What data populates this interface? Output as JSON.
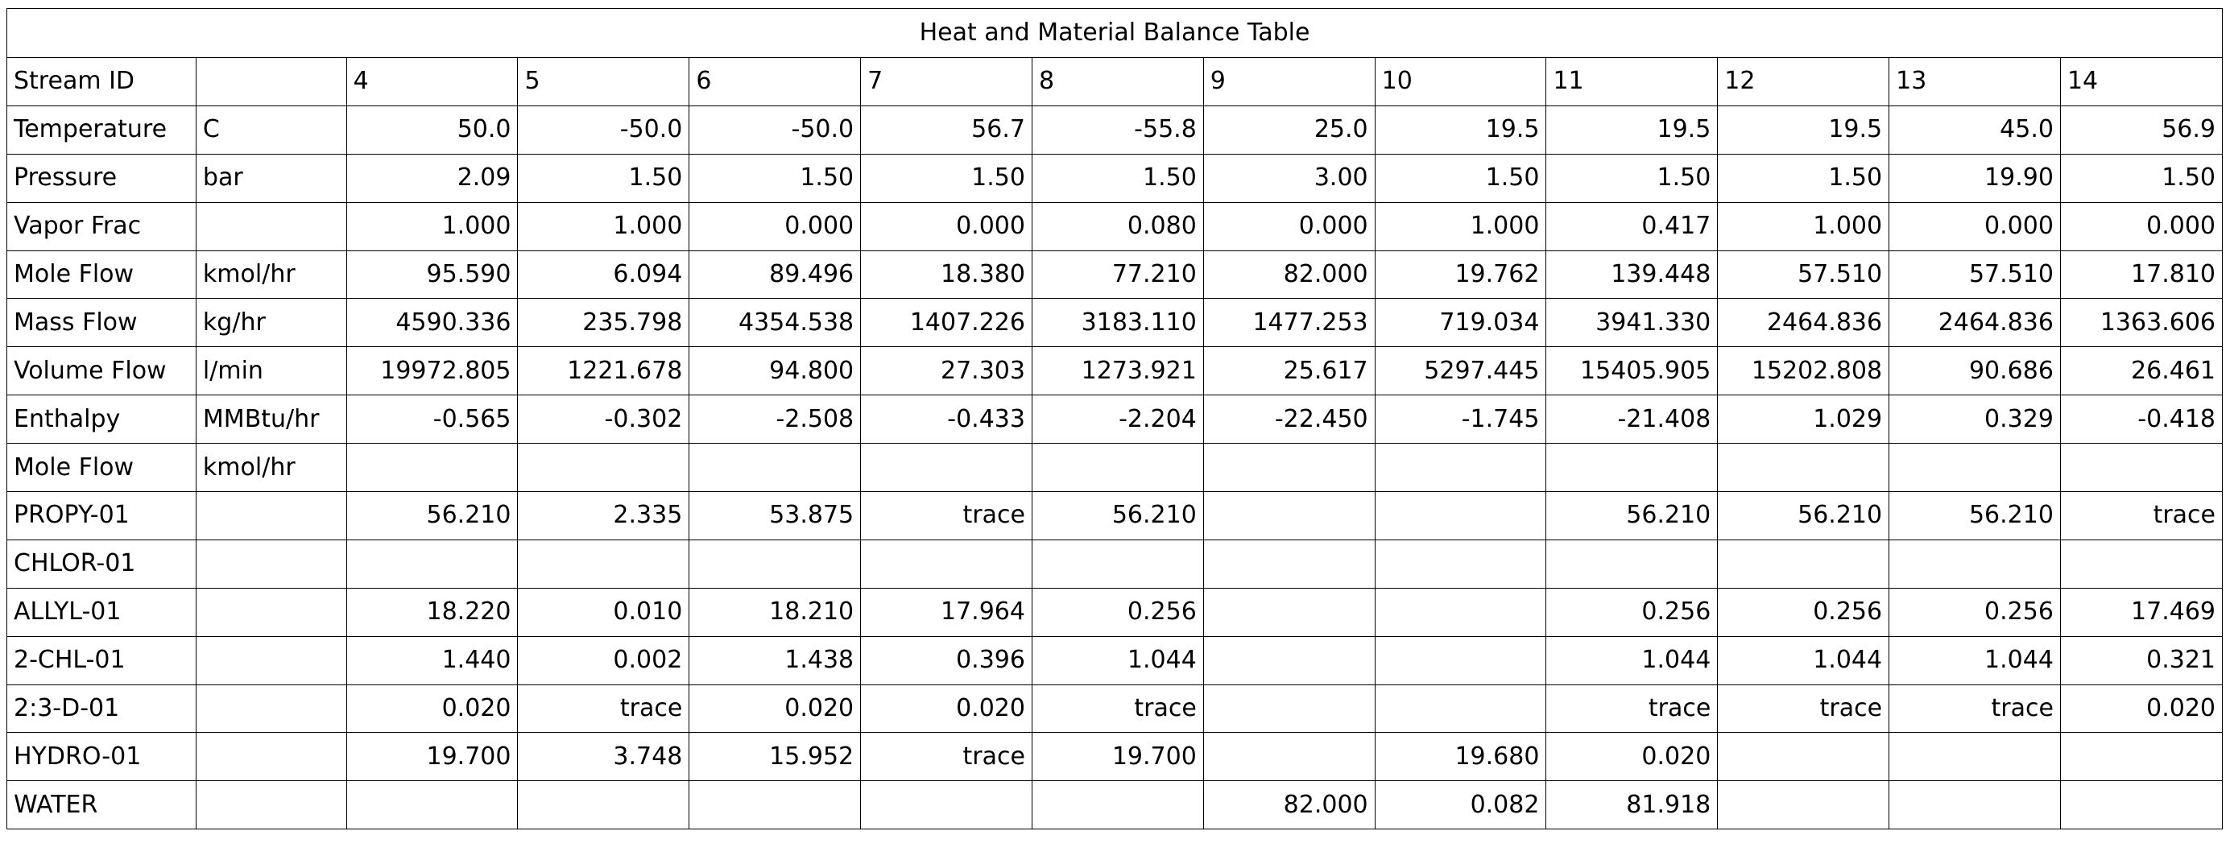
{
  "title": "Heat and Material Balance Table",
  "header": {
    "label": "Stream ID",
    "unit": "",
    "streams": [
      "4",
      "5",
      "6",
      "7",
      "8",
      "9",
      "10",
      "11",
      "12",
      "13",
      "14"
    ]
  },
  "props": [
    {
      "label": "Temperature",
      "unit": "C",
      "values": [
        "50.0",
        "-50.0",
        "-50.0",
        "56.7",
        "-55.8",
        "25.0",
        "19.5",
        "19.5",
        "19.5",
        "45.0",
        "56.9"
      ]
    },
    {
      "label": "Pressure",
      "unit": "bar",
      "values": [
        "2.09",
        "1.50",
        "1.50",
        "1.50",
        "1.50",
        "3.00",
        "1.50",
        "1.50",
        "1.50",
        "19.90",
        "1.50"
      ]
    },
    {
      "label": "Vapor Frac",
      "unit": "",
      "values": [
        "1.000",
        "1.000",
        "0.000",
        "0.000",
        "0.080",
        "0.000",
        "1.000",
        "0.417",
        "1.000",
        "0.000",
        "0.000"
      ]
    },
    {
      "label": "Mole Flow",
      "unit": "kmol/hr",
      "values": [
        "95.590",
        "6.094",
        "89.496",
        "18.380",
        "77.210",
        "82.000",
        "19.762",
        "139.448",
        "57.510",
        "57.510",
        "17.810"
      ]
    },
    {
      "label": "Mass Flow",
      "unit": "kg/hr",
      "values": [
        "4590.336",
        "235.798",
        "4354.538",
        "1407.226",
        "3183.110",
        "1477.253",
        "719.034",
        "3941.330",
        "2464.836",
        "2464.836",
        "1363.606"
      ]
    },
    {
      "label": "Volume Flow",
      "unit": "l/min",
      "values": [
        "19972.805",
        "1221.678",
        "94.800",
        "27.303",
        "1273.921",
        "25.617",
        "5297.445",
        "15405.905",
        "15202.808",
        "90.686",
        "26.461"
      ]
    },
    {
      "label": "Enthalpy",
      "unit": "MMBtu/hr",
      "values": [
        "-0.565",
        "-0.302",
        "-2.508",
        "-0.433",
        "-2.204",
        "-22.450",
        "-1.745",
        "-21.408",
        "1.029",
        "0.329",
        "-0.418"
      ]
    }
  ],
  "component_header": {
    "label": "Mole Flow",
    "unit": "kmol/hr"
  },
  "components": [
    {
      "label": "PROPY-01",
      "values": [
        "56.210",
        "2.335",
        "53.875",
        "trace",
        "56.210",
        "",
        "",
        "56.210",
        "56.210",
        "56.210",
        "trace"
      ]
    },
    {
      "label": "CHLOR-01",
      "values": [
        "",
        "",
        "",
        "",
        "",
        "",
        "",
        "",
        "",
        "",
        ""
      ]
    },
    {
      "label": "ALLYL-01",
      "values": [
        "18.220",
        "0.010",
        "18.210",
        "17.964",
        "0.256",
        "",
        "",
        "0.256",
        "0.256",
        "0.256",
        "17.469"
      ]
    },
    {
      "label": "2-CHL-01",
      "values": [
        "1.440",
        "0.002",
        "1.438",
        "0.396",
        "1.044",
        "",
        "",
        "1.044",
        "1.044",
        "1.044",
        "0.321"
      ]
    },
    {
      "label": "2:3-D-01",
      "values": [
        "0.020",
        "trace",
        "0.020",
        "0.020",
        "trace",
        "",
        "",
        "trace",
        "trace",
        "trace",
        "0.020"
      ]
    },
    {
      "label": "HYDRO-01",
      "values": [
        "19.700",
        "3.748",
        "15.952",
        "trace",
        "19.700",
        "",
        "19.680",
        "0.020",
        "",
        "",
        ""
      ]
    },
    {
      "label": "WATER",
      "values": [
        "",
        "",
        "",
        "",
        "",
        "82.000",
        "0.082",
        "81.918",
        "",
        "",
        ""
      ]
    }
  ]
}
